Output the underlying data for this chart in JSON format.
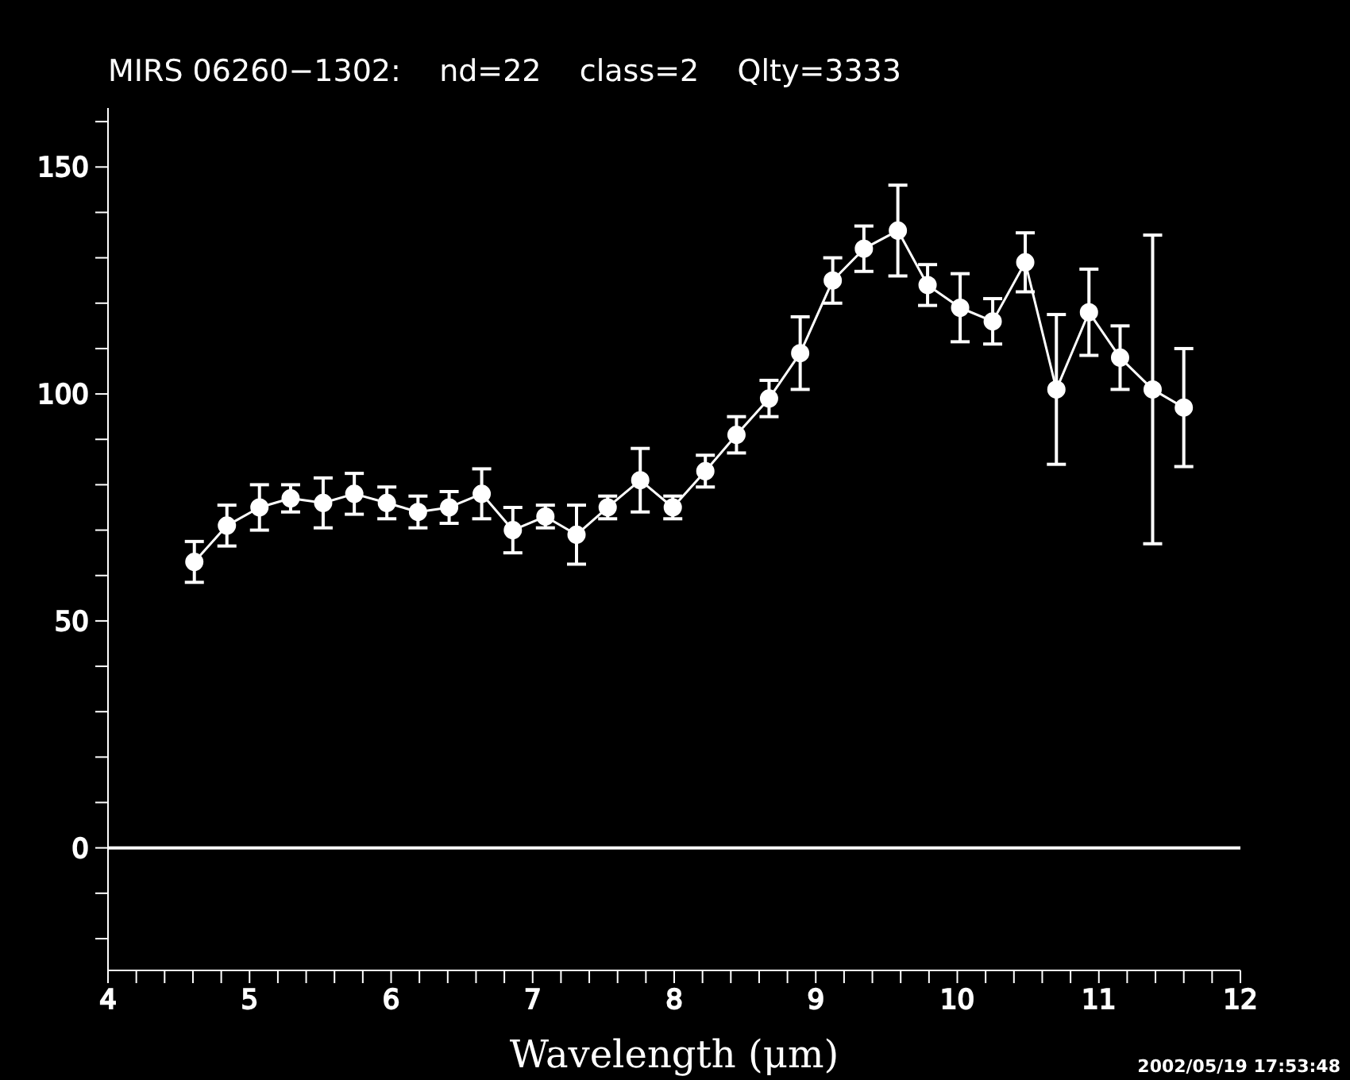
{
  "chart_data": {
    "type": "line",
    "title": "MIRS 06260−1302:    nd=22    class=2    Qlty=3333",
    "xlabel": "Wavelength (μm)",
    "annotations": [
      "2002/05/19 17:53:48"
    ],
    "x": [
      4.61,
      4.84,
      5.07,
      5.29,
      5.52,
      5.74,
      5.97,
      6.19,
      6.41,
      6.64,
      6.86,
      7.09,
      7.31,
      7.53,
      7.76,
      7.99,
      8.22,
      8.44,
      8.67,
      8.89,
      9.12,
      9.34,
      9.58,
      9.79,
      10.02,
      10.25,
      10.48,
      10.7,
      10.93,
      11.15,
      11.38,
      11.6
    ],
    "series": [
      {
        "color": "#ffffff",
        "values": [
          63,
          71,
          75,
          77,
          76,
          78,
          76,
          74,
          75,
          78,
          70,
          73,
          69,
          75,
          81,
          75,
          83,
          91,
          99,
          109,
          125,
          132,
          136,
          124,
          119,
          116,
          129,
          101,
          118,
          108,
          101,
          97
        ],
        "errors": [
          4.5,
          4.5,
          5,
          3,
          5.5,
          4.5,
          3.5,
          3.5,
          3.5,
          5.5,
          5,
          2.5,
          6.5,
          2.5,
          7,
          2.5,
          3.5,
          4,
          4,
          8,
          5,
          5,
          10,
          4.5,
          7.5,
          5,
          6.5,
          16.5,
          9.5,
          7,
          34,
          13
        ]
      }
    ],
    "xlim": [
      4,
      12
    ],
    "ylim": [
      -27,
      163
    ],
    "xticks": [
      4,
      {
        "value": 4.2,
        "label": null
      },
      {
        "value": 4.4,
        "label": null
      },
      {
        "value": 4.6,
        "label": null
      },
      {
        "value": 4.8,
        "label": null
      },
      5,
      {
        "value": 5.2,
        "label": null
      },
      {
        "value": 5.4,
        "label": null
      },
      {
        "value": 5.6,
        "label": null
      },
      {
        "value": 5.8,
        "label": null
      },
      6,
      {
        "value": 6.2,
        "label": null
      },
      {
        "value": 6.4,
        "label": null
      },
      {
        "value": 6.6,
        "label": null
      },
      {
        "value": 6.8,
        "label": null
      },
      7,
      {
        "value": 7.2,
        "label": null
      },
      {
        "value": 7.4,
        "label": null
      },
      {
        "value": 7.6,
        "label": null
      },
      {
        "value": 7.8,
        "label": null
      },
      8,
      {
        "value": 8.2,
        "label": null
      },
      {
        "value": 8.4,
        "label": null
      },
      {
        "value": 8.6,
        "label": null
      },
      {
        "value": 8.8,
        "label": null
      },
      9,
      {
        "value": 9.2,
        "label": null
      },
      {
        "value": 9.4,
        "label": null
      },
      {
        "value": 9.6,
        "label": null
      },
      {
        "value": 9.8,
        "label": null
      },
      10,
      {
        "value": 10.2,
        "label": null
      },
      {
        "value": 10.4,
        "label": null
      },
      {
        "value": 10.6,
        "label": null
      },
      {
        "value": 10.8,
        "label": null
      },
      11,
      {
        "value": 11.2,
        "label": null
      },
      {
        "value": 11.4,
        "label": null
      },
      {
        "value": 11.6,
        "label": null
      },
      {
        "value": 11.8,
        "label": null
      },
      12
    ],
    "yticks": [
      {
        "value": -20,
        "label": null
      },
      {
        "value": -10,
        "label": null
      },
      0,
      {
        "value": 10,
        "label": null
      },
      {
        "value": 20,
        "label": null
      },
      {
        "value": 30,
        "label": null
      },
      {
        "value": 40,
        "label": null
      },
      50,
      {
        "value": 60,
        "label": null
      },
      {
        "value": 70,
        "label": null
      },
      {
        "value": 80,
        "label": null
      },
      {
        "value": 90,
        "label": null
      },
      100,
      {
        "value": 110,
        "label": null
      },
      {
        "value": 120,
        "label": null
      },
      {
        "value": 130,
        "label": null
      },
      {
        "value": 140,
        "label": null
      },
      150,
      {
        "value": 160,
        "label": null
      }
    ],
    "ref_lines": [
      {
        "axis": "y",
        "value": 0,
        "color": "#ffffff"
      }
    ],
    "marker": "circle",
    "line_style": "solid"
  }
}
